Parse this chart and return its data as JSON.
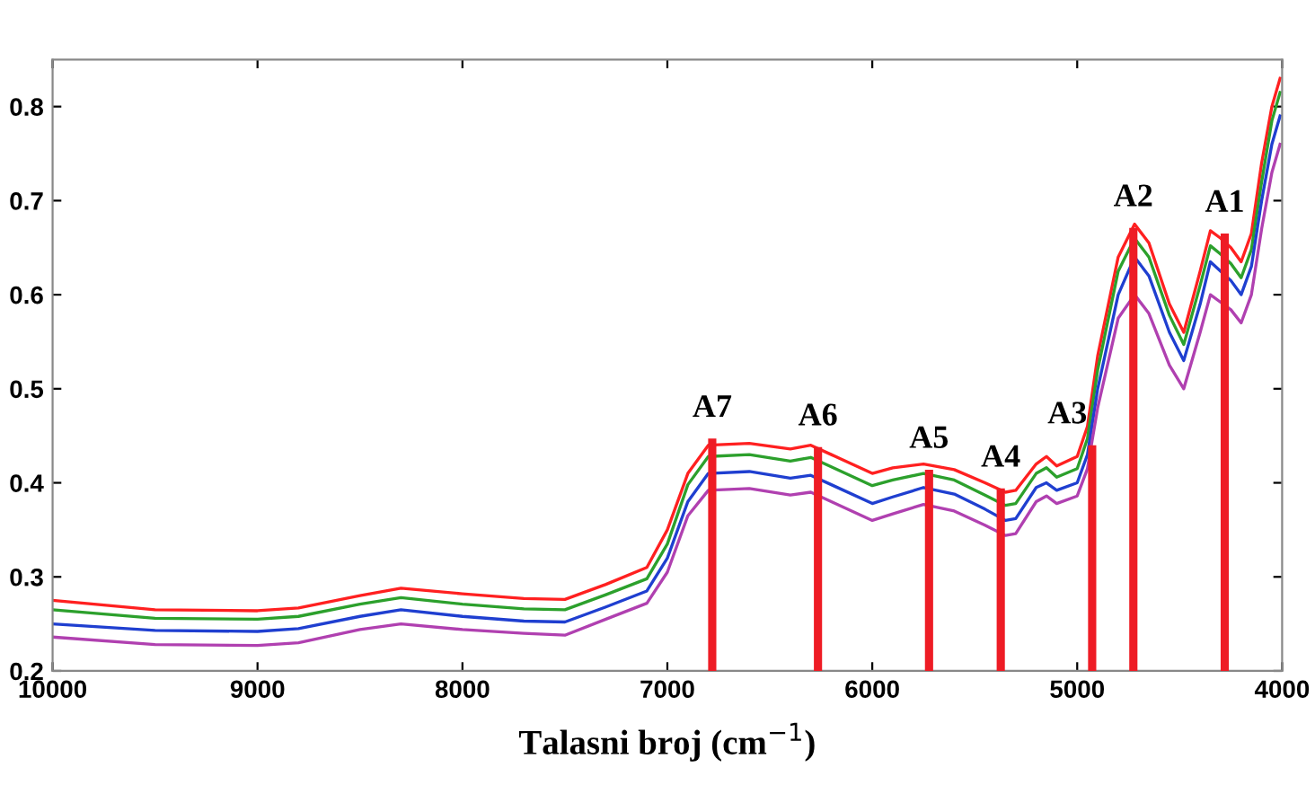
{
  "chart_data": {
    "type": "line",
    "xlabel": "Talasni broj (cm$^{−1}$)",
    "xlim": [
      10000,
      4000
    ],
    "xticks": [
      10000,
      9000,
      8000,
      7000,
      6000,
      5000,
      4000
    ],
    "ylim": [
      0.2,
      0.85
    ],
    "yticks": [
      0.2,
      0.3,
      0.4,
      0.5,
      0.6,
      0.7,
      0.8
    ],
    "grid": false,
    "marker": "none",
    "line_style": "solid",
    "series": [
      {
        "color": "#ff2020",
        "x": [
          10000,
          9500,
          9000,
          8800,
          8500,
          8300,
          8000,
          7700,
          7500,
          7300,
          7100,
          7000,
          6900,
          6800,
          6600,
          6400,
          6300,
          6200,
          6000,
          5900,
          5750,
          5600,
          5450,
          5350,
          5300,
          5200,
          5150,
          5100,
          5000,
          4950,
          4900,
          4800,
          4720,
          4650,
          4550,
          4480,
          4400,
          4350,
          4300,
          4250,
          4200,
          4150,
          4100,
          4050,
          4010
        ],
        "values": [
          0.275,
          0.265,
          0.264,
          0.267,
          0.28,
          0.288,
          0.282,
          0.277,
          0.276,
          0.292,
          0.31,
          0.35,
          0.41,
          0.44,
          0.442,
          0.436,
          0.44,
          0.43,
          0.41,
          0.416,
          0.42,
          0.414,
          0.4,
          0.39,
          0.392,
          0.42,
          0.428,
          0.418,
          0.428,
          0.46,
          0.535,
          0.64,
          0.675,
          0.655,
          0.59,
          0.56,
          0.625,
          0.668,
          0.66,
          0.65,
          0.635,
          0.665,
          0.74,
          0.8,
          0.83
        ]
      },
      {
        "color": "#2ca02c",
        "x": [
          10000,
          9500,
          9000,
          8800,
          8500,
          8300,
          8000,
          7700,
          7500,
          7300,
          7100,
          7000,
          6900,
          6800,
          6600,
          6400,
          6300,
          6200,
          6000,
          5900,
          5750,
          5600,
          5450,
          5350,
          5300,
          5200,
          5150,
          5100,
          5000,
          4950,
          4900,
          4800,
          4720,
          4650,
          4550,
          4480,
          4400,
          4350,
          4300,
          4250,
          4200,
          4150,
          4100,
          4050,
          4010
        ],
        "values": [
          0.265,
          0.256,
          0.255,
          0.258,
          0.271,
          0.278,
          0.271,
          0.266,
          0.265,
          0.281,
          0.298,
          0.335,
          0.398,
          0.428,
          0.43,
          0.423,
          0.427,
          0.417,
          0.397,
          0.403,
          0.41,
          0.403,
          0.387,
          0.376,
          0.378,
          0.41,
          0.416,
          0.406,
          0.415,
          0.447,
          0.52,
          0.625,
          0.66,
          0.64,
          0.578,
          0.547,
          0.61,
          0.652,
          0.643,
          0.633,
          0.618,
          0.648,
          0.72,
          0.785,
          0.815
        ]
      },
      {
        "color": "#1f3fd0",
        "x": [
          10000,
          9500,
          9000,
          8800,
          8500,
          8300,
          8000,
          7700,
          7500,
          7300,
          7100,
          7000,
          6900,
          6800,
          6600,
          6400,
          6300,
          6200,
          6000,
          5900,
          5750,
          5600,
          5450,
          5350,
          5300,
          5200,
          5150,
          5100,
          5000,
          4950,
          4900,
          4800,
          4720,
          4650,
          4550,
          4480,
          4400,
          4350,
          4300,
          4250,
          4200,
          4150,
          4100,
          4050,
          4010
        ],
        "values": [
          0.25,
          0.243,
          0.242,
          0.245,
          0.258,
          0.265,
          0.258,
          0.253,
          0.252,
          0.268,
          0.285,
          0.32,
          0.38,
          0.41,
          0.412,
          0.405,
          0.408,
          0.398,
          0.378,
          0.385,
          0.395,
          0.388,
          0.372,
          0.36,
          0.362,
          0.395,
          0.4,
          0.392,
          0.4,
          0.43,
          0.5,
          0.6,
          0.64,
          0.62,
          0.56,
          0.53,
          0.59,
          0.635,
          0.625,
          0.615,
          0.6,
          0.63,
          0.7,
          0.76,
          0.79
        ]
      },
      {
        "color": "#b040b0",
        "x": [
          10000,
          9500,
          9000,
          8800,
          8500,
          8300,
          8000,
          7700,
          7500,
          7300,
          7100,
          7000,
          6900,
          6800,
          6600,
          6400,
          6300,
          6200,
          6000,
          5900,
          5750,
          5600,
          5450,
          5350,
          5300,
          5200,
          5150,
          5100,
          5000,
          4950,
          4900,
          4800,
          4720,
          4650,
          4550,
          4480,
          4400,
          4350,
          4300,
          4250,
          4200,
          4150,
          4100,
          4050,
          4010
        ],
        "values": [
          0.236,
          0.228,
          0.227,
          0.23,
          0.244,
          0.25,
          0.244,
          0.24,
          0.238,
          0.255,
          0.272,
          0.305,
          0.365,
          0.392,
          0.394,
          0.387,
          0.39,
          0.38,
          0.36,
          0.367,
          0.377,
          0.37,
          0.355,
          0.344,
          0.346,
          0.38,
          0.386,
          0.378,
          0.386,
          0.415,
          0.48,
          0.575,
          0.6,
          0.58,
          0.525,
          0.5,
          0.56,
          0.6,
          0.592,
          0.584,
          0.57,
          0.6,
          0.67,
          0.73,
          0.76
        ]
      },
      {
        "type": "bar",
        "color": "#ee1c25",
        "x": [
          4280,
          4726,
          4927,
          5373,
          5723,
          6265,
          6781
        ],
        "values": [
          0.665,
          0.671,
          0.44,
          0.394,
          0.414,
          0.438,
          0.447
        ],
        "value_labels": [
          "A1",
          "A2",
          "A3",
          "A4",
          "A5",
          "A6",
          "A7"
        ]
      }
    ]
  }
}
